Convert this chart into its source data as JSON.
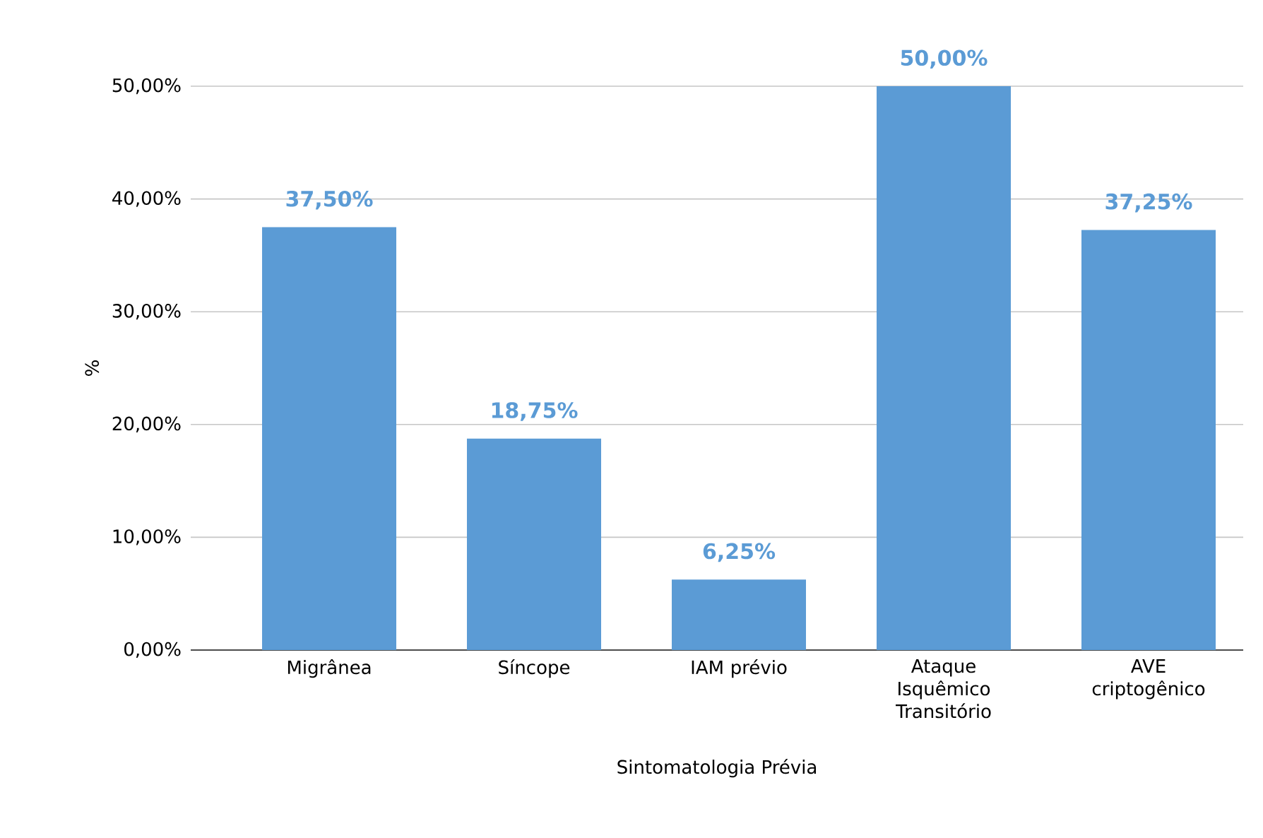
{
  "chart_data": {
    "type": "bar",
    "xlabel": "Sintomatologia Prévia",
    "ylabel": "%",
    "categories": [
      "Migrânea",
      "Síncope",
      "IAM prévio",
      "Ataque Isquêmico Transitório",
      "AVE criptogênico"
    ],
    "values": [
      37.5,
      18.75,
      6.25,
      50,
      37.25
    ],
    "value_labels": [
      "37,50%",
      "18,75%",
      "6,25%",
      "50,00%",
      "37,25%"
    ],
    "color": "#5b9bd5",
    "ylim": [
      0,
      50
    ],
    "yticks": [
      {
        "value": 0,
        "label": "0,00%"
      },
      {
        "value": 10,
        "label": "10,00%"
      },
      {
        "value": 20,
        "label": "20,00%"
      },
      {
        "value": 30,
        "label": "30,00%"
      },
      {
        "value": 40,
        "label": "40,00%"
      },
      {
        "value": 50,
        "label": "50,00%"
      }
    ],
    "grid": "y"
  }
}
